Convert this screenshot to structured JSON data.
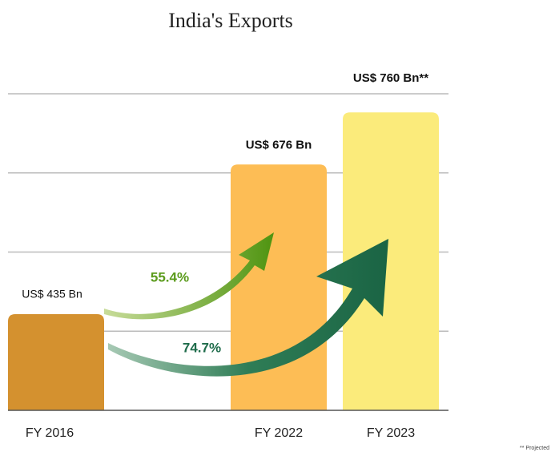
{
  "chart_data": {
    "type": "bar",
    "title": "India's Exports",
    "categories": [
      "FY 2016",
      "FY 2022",
      "FY 2023"
    ],
    "values": [
      435,
      676,
      760
    ],
    "value_labels": [
      "US$ 435 Bn",
      "US$ 676 Bn",
      "US$ 760 Bn**"
    ],
    "colors": [
      "#d4912f",
      "#fdbd55",
      "#fbeb7b"
    ],
    "ylim": [
      280,
      790
    ],
    "yticks": [
      407.5,
      535,
      662.5,
      790
    ],
    "grid": true,
    "annotations": [
      {
        "text": "55.4%",
        "color": "#5b9b1c"
      },
      {
        "text": "74.7%",
        "color": "#1f6c4b"
      }
    ],
    "footnote": "** Projected"
  }
}
